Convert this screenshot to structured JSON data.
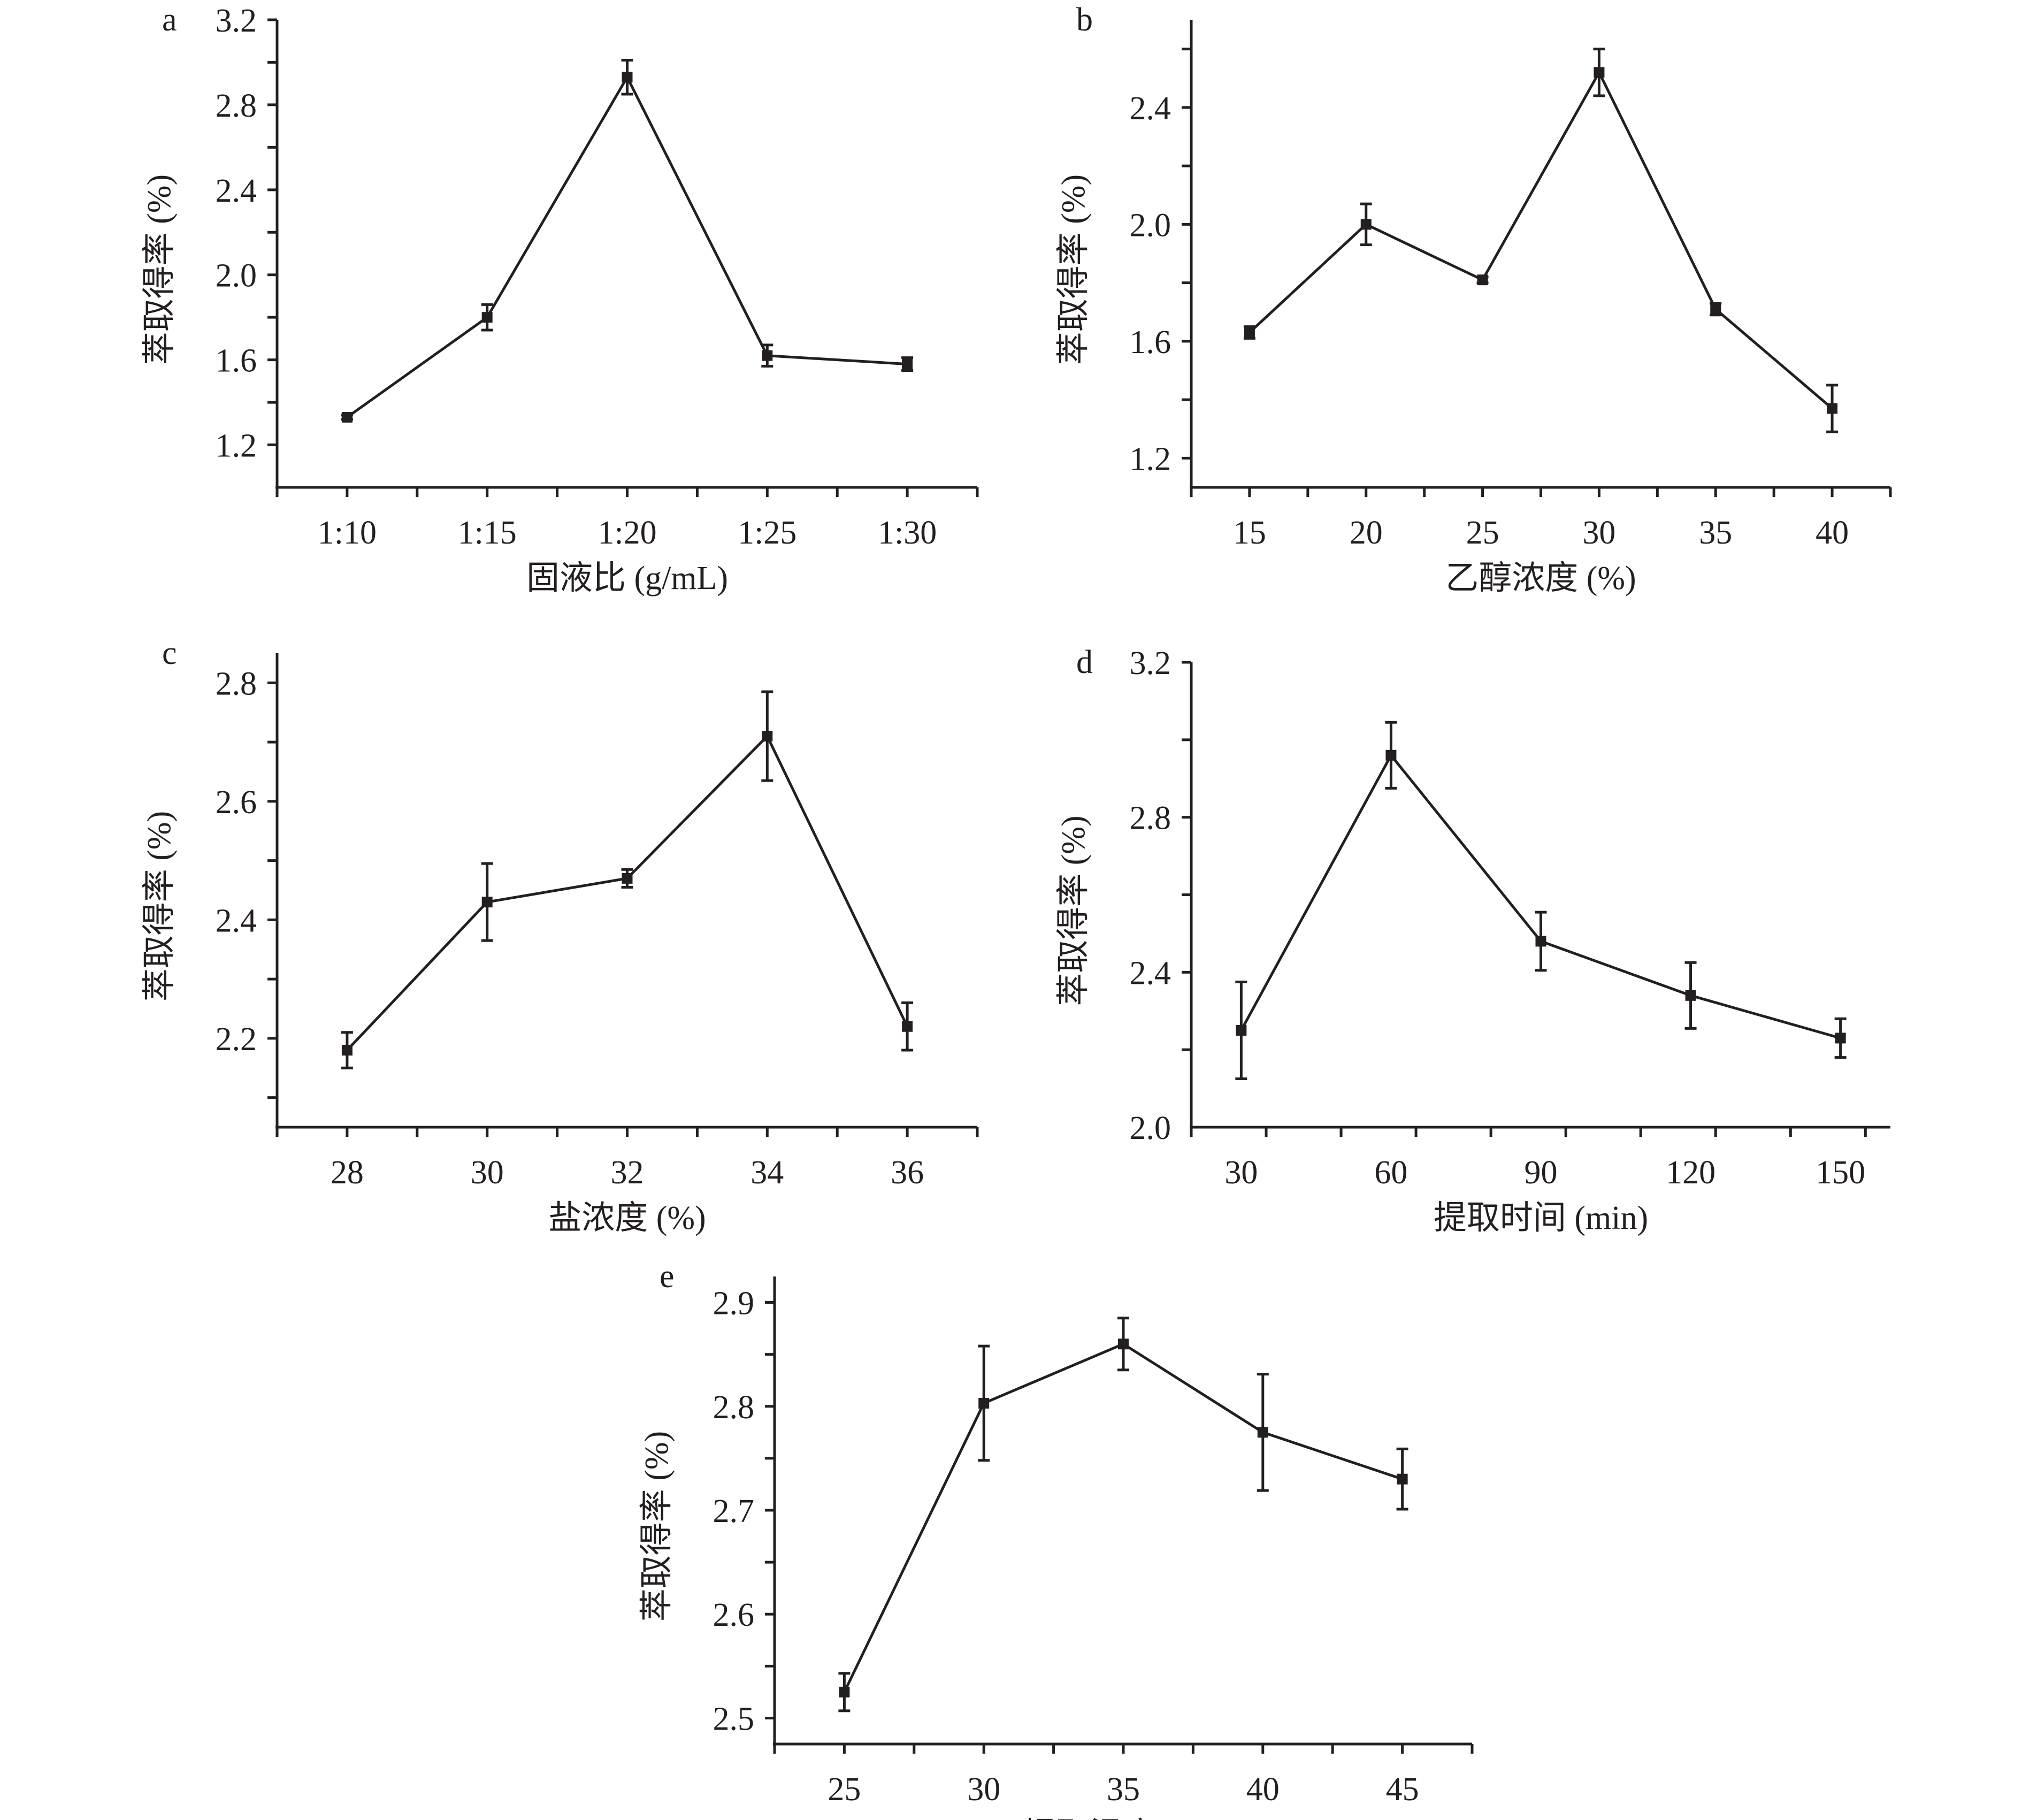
{
  "figure": {
    "panels": [
      "a",
      "b",
      "c",
      "d",
      "e"
    ]
  },
  "chart_data": [
    {
      "panel": "a",
      "type": "line",
      "title": "",
      "xlabel": "固液比 (g/mL)",
      "ylabel": "萃取得率 (%)",
      "categories": [
        "1:10",
        "1:15",
        "1:20",
        "1:25",
        "1:30"
      ],
      "ylim": [
        1.0,
        3.2
      ],
      "yticks": [
        "1.2",
        "1.6",
        "2.0",
        "2.4",
        "2.8",
        "3.2"
      ],
      "ytick_values": [
        1.2,
        1.6,
        2.0,
        2.4,
        2.8,
        3.2
      ],
      "y_minor_step": 0.2,
      "x_categorical": true,
      "values": [
        1.33,
        1.8,
        2.93,
        1.62,
        1.58
      ],
      "errors": [
        0.01,
        0.06,
        0.08,
        0.05,
        0.03
      ],
      "grid": false,
      "legend": "none"
    },
    {
      "panel": "b",
      "type": "line",
      "title": "",
      "xlabel": "乙醇浓度 (%)",
      "ylabel": "萃取得率 (%)",
      "x": [
        15,
        20,
        25,
        30,
        35,
        40
      ],
      "xticks": [
        "15",
        "20",
        "25",
        "30",
        "35",
        "40"
      ],
      "xlim": [
        12.5,
        42.5
      ],
      "ylim": [
        1.1,
        2.7
      ],
      "yticks": [
        "1.2",
        "1.6",
        "2.0",
        "2.4"
      ],
      "ytick_values": [
        1.2,
        1.6,
        2.0,
        2.4
      ],
      "y_minor_step": 0.2,
      "values": [
        1.63,
        2.0,
        1.81,
        2.52,
        1.71,
        1.37
      ],
      "errors": [
        0.02,
        0.07,
        0.01,
        0.08,
        0.02,
        0.08
      ],
      "grid": false,
      "legend": "none"
    },
    {
      "panel": "c",
      "type": "line",
      "title": "",
      "xlabel": "盐浓度 (%)",
      "ylabel": "萃取得率 (%)",
      "x": [
        28,
        30,
        32,
        34,
        36
      ],
      "xticks": [
        "28",
        "30",
        "32",
        "34",
        "36"
      ],
      "xlim": [
        27,
        37
      ],
      "ylim": [
        2.05,
        2.85
      ],
      "yticks": [
        "2.2",
        "2.4",
        "2.6",
        "2.8"
      ],
      "ytick_values": [
        2.2,
        2.4,
        2.6,
        2.8
      ],
      "y_minor_step": 0.1,
      "values": [
        2.18,
        2.43,
        2.47,
        2.71,
        2.22
      ],
      "errors": [
        0.03,
        0.065,
        0.015,
        0.075,
        0.04
      ],
      "grid": false,
      "legend": "none"
    },
    {
      "panel": "d",
      "type": "line",
      "title": "",
      "xlabel": "提取时间 (min)",
      "ylabel": "萃取得率 (%)",
      "x": [
        30,
        60,
        90,
        120,
        150
      ],
      "xticks": [
        "30",
        "60",
        "90",
        "120",
        "150"
      ],
      "xlim": [
        20,
        160
      ],
      "ylim": [
        2.0,
        3.2
      ],
      "yticks": [
        "2.0",
        "2.4",
        "2.8",
        "3.2"
      ],
      "ytick_values": [
        2.0,
        2.4,
        2.8,
        3.2
      ],
      "y_minor_step": 0.2,
      "values": [
        2.25,
        2.96,
        2.48,
        2.34,
        2.23
      ],
      "errors": [
        0.125,
        0.085,
        0.075,
        0.085,
        0.05
      ],
      "grid": false,
      "legend": "none"
    },
    {
      "panel": "e",
      "type": "line",
      "title": "",
      "xlabel": "提取温度 (℃)",
      "ylabel": "萃取得率 (%)",
      "x": [
        25,
        30,
        35,
        40,
        45
      ],
      "xticks": [
        "25",
        "30",
        "35",
        "40",
        "45"
      ],
      "xlim": [
        22.5,
        47.5
      ],
      "ylim": [
        2.475,
        2.925
      ],
      "yticks": [
        "2.5",
        "2.6",
        "2.7",
        "2.8",
        "2.9"
      ],
      "ytick_values": [
        2.5,
        2.6,
        2.7,
        2.8,
        2.9
      ],
      "y_minor_step": 0.05,
      "values": [
        2.525,
        2.803,
        2.86,
        2.775,
        2.73
      ],
      "errors": [
        0.018,
        0.055,
        0.025,
        0.056,
        0.029
      ],
      "grid": false,
      "legend": "none"
    }
  ]
}
